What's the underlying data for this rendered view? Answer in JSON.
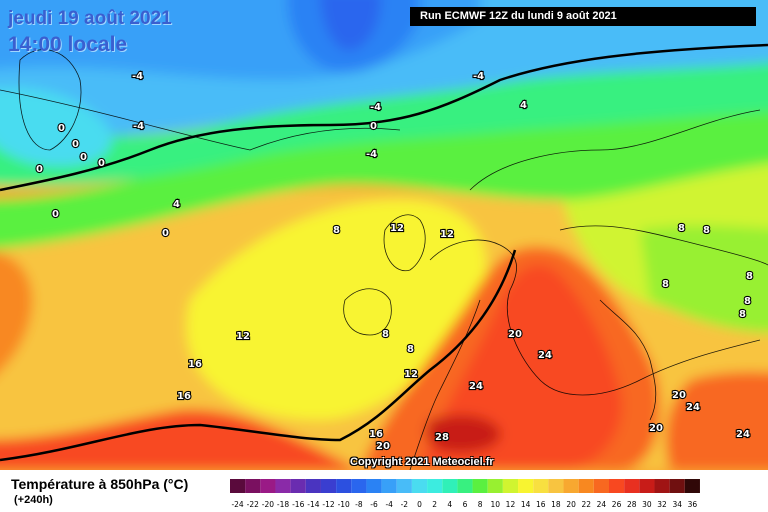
{
  "header": {
    "run_info": "Run ECMWF 12Z du lundi 9 août 2021",
    "date": "jeudi 19 août 2021",
    "time": "14:00 locale"
  },
  "footer": {
    "parameter": "Température à 850hPa (°C)",
    "lead_time": "(+240h)",
    "copyright": "Copyright 2021 Meteociel.fr"
  },
  "legend": {
    "values": [
      "-24",
      "-22",
      "-20",
      "-18",
      "-16",
      "-14",
      "-12",
      "-10",
      "-8",
      "-6",
      "-4",
      "-2",
      "0",
      "2",
      "4",
      "6",
      "8",
      "10",
      "12",
      "14",
      "16",
      "18",
      "20",
      "22",
      "24",
      "26",
      "28",
      "30",
      "32",
      "34",
      "36"
    ],
    "colors": [
      "#5a0a3c",
      "#7a1060",
      "#9a1a86",
      "#8a2aa8",
      "#6a2cb0",
      "#4a34c0",
      "#3a3ed0",
      "#2c50e0",
      "#2a66ee",
      "#2a82f4",
      "#38a0f8",
      "#48bcf8",
      "#4adcf0",
      "#3cece0",
      "#30f0b8",
      "#38f080",
      "#5af040",
      "#98f030",
      "#d0f430",
      "#f8f430",
      "#f8e040",
      "#f8c440",
      "#f8a830",
      "#f88820",
      "#f86820",
      "#f84820",
      "#e83020",
      "#c81c18",
      "#a01414",
      "#701010",
      "#300808"
    ]
  },
  "map_labels": [
    {
      "text": "-4"
    },
    {
      "text": "-4"
    },
    {
      "text": "-4"
    },
    {
      "text": "-4"
    },
    {
      "text": "4"
    },
    {
      "text": "0"
    },
    {
      "text": "0"
    },
    {
      "text": "0"
    },
    {
      "text": "0"
    },
    {
      "text": "-4"
    },
    {
      "text": "0"
    },
    {
      "text": "0"
    },
    {
      "text": "0"
    },
    {
      "text": "4"
    },
    {
      "text": "0"
    },
    {
      "text": "8"
    },
    {
      "text": "12"
    },
    {
      "text": "12"
    },
    {
      "text": "8"
    },
    {
      "text": "8"
    },
    {
      "text": "8"
    },
    {
      "text": "8"
    },
    {
      "text": "8"
    },
    {
      "text": "8"
    },
    {
      "text": "12"
    },
    {
      "text": "16"
    },
    {
      "text": "16"
    },
    {
      "text": "8"
    },
    {
      "text": "8"
    },
    {
      "text": "12"
    },
    {
      "text": "20"
    },
    {
      "text": "24"
    },
    {
      "text": "24"
    },
    {
      "text": "20"
    },
    {
      "text": "24"
    },
    {
      "text": "20"
    },
    {
      "text": "24"
    },
    {
      "text": "16"
    },
    {
      "text": "20"
    },
    {
      "text": "28"
    }
  ]
}
